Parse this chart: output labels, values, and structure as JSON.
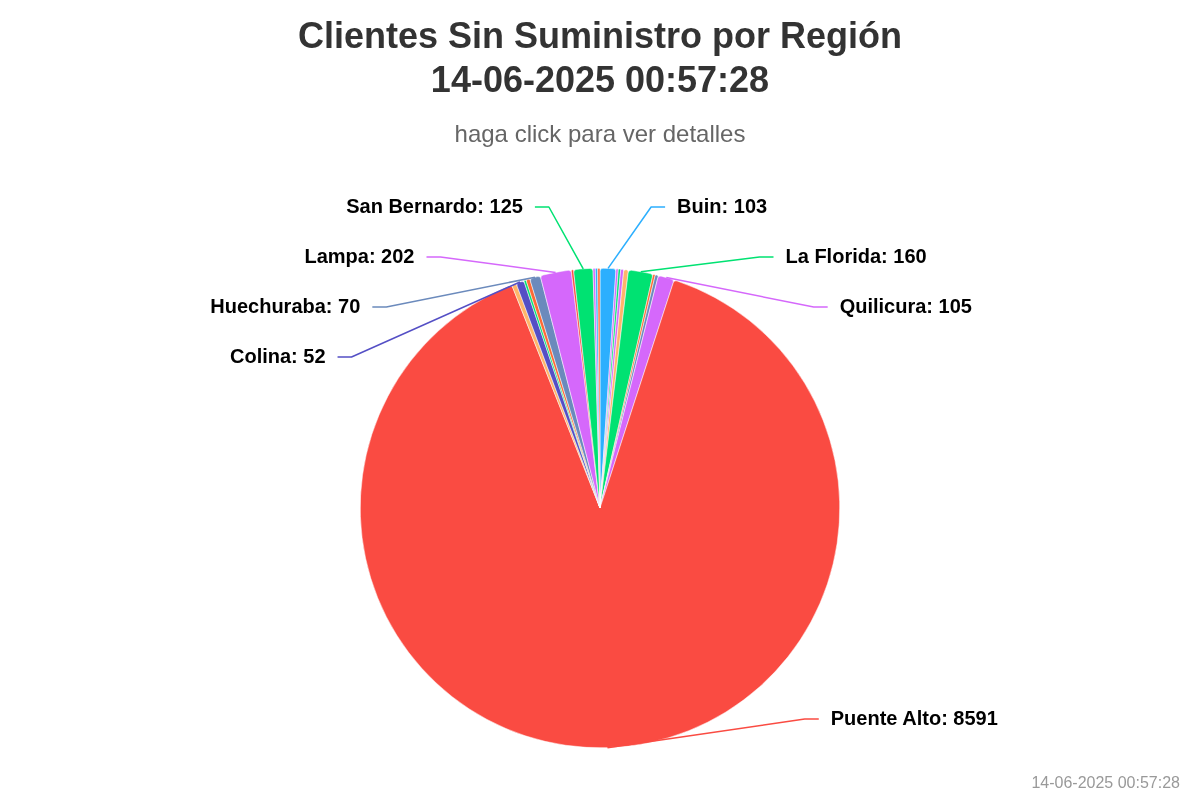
{
  "chart_data": {
    "type": "pie",
    "title": "Clientes Sin Suministro por Región\n14-06-2025 00:57:28",
    "subtitle": "haga click para ver detalles",
    "categories": [
      "Buin",
      null,
      null,
      null,
      null,
      "La Florida",
      null,
      null,
      "Quilicura",
      "Puente Alto",
      null,
      "Colina",
      null,
      null,
      "Huechuraba",
      "Lampa",
      null,
      "San Bernardo",
      null,
      null,
      null
    ],
    "values": [
      103,
      15,
      15,
      20,
      30,
      160,
      15,
      20,
      105,
      8591,
      30,
      52,
      15,
      25,
      70,
      202,
      15,
      125,
      15,
      15,
      15
    ],
    "colors": [
      "#2caffe",
      "#d568fb",
      "#00e272",
      "#d568fb",
      "#feb56a",
      "#00e272",
      "#fe6a35",
      "#6b8abc",
      "#d568fb",
      "#fa4b42",
      "#feb56a",
      "#544fc5",
      "#00e272",
      "#fe6a35",
      "#6b8abc",
      "#d568fb",
      "#fa4b42",
      "#00e272",
      "#d568fb",
      "#2caffe",
      "#fe6a35"
    ],
    "value_labels": [
      "103",
      null,
      null,
      null,
      null,
      "160",
      null,
      null,
      "105",
      "8591",
      null,
      "52",
      null,
      null,
      "70",
      "202",
      null,
      "125",
      null,
      null,
      null
    ],
    "annotations": [
      "14-06-2025 00:57:28"
    ]
  }
}
